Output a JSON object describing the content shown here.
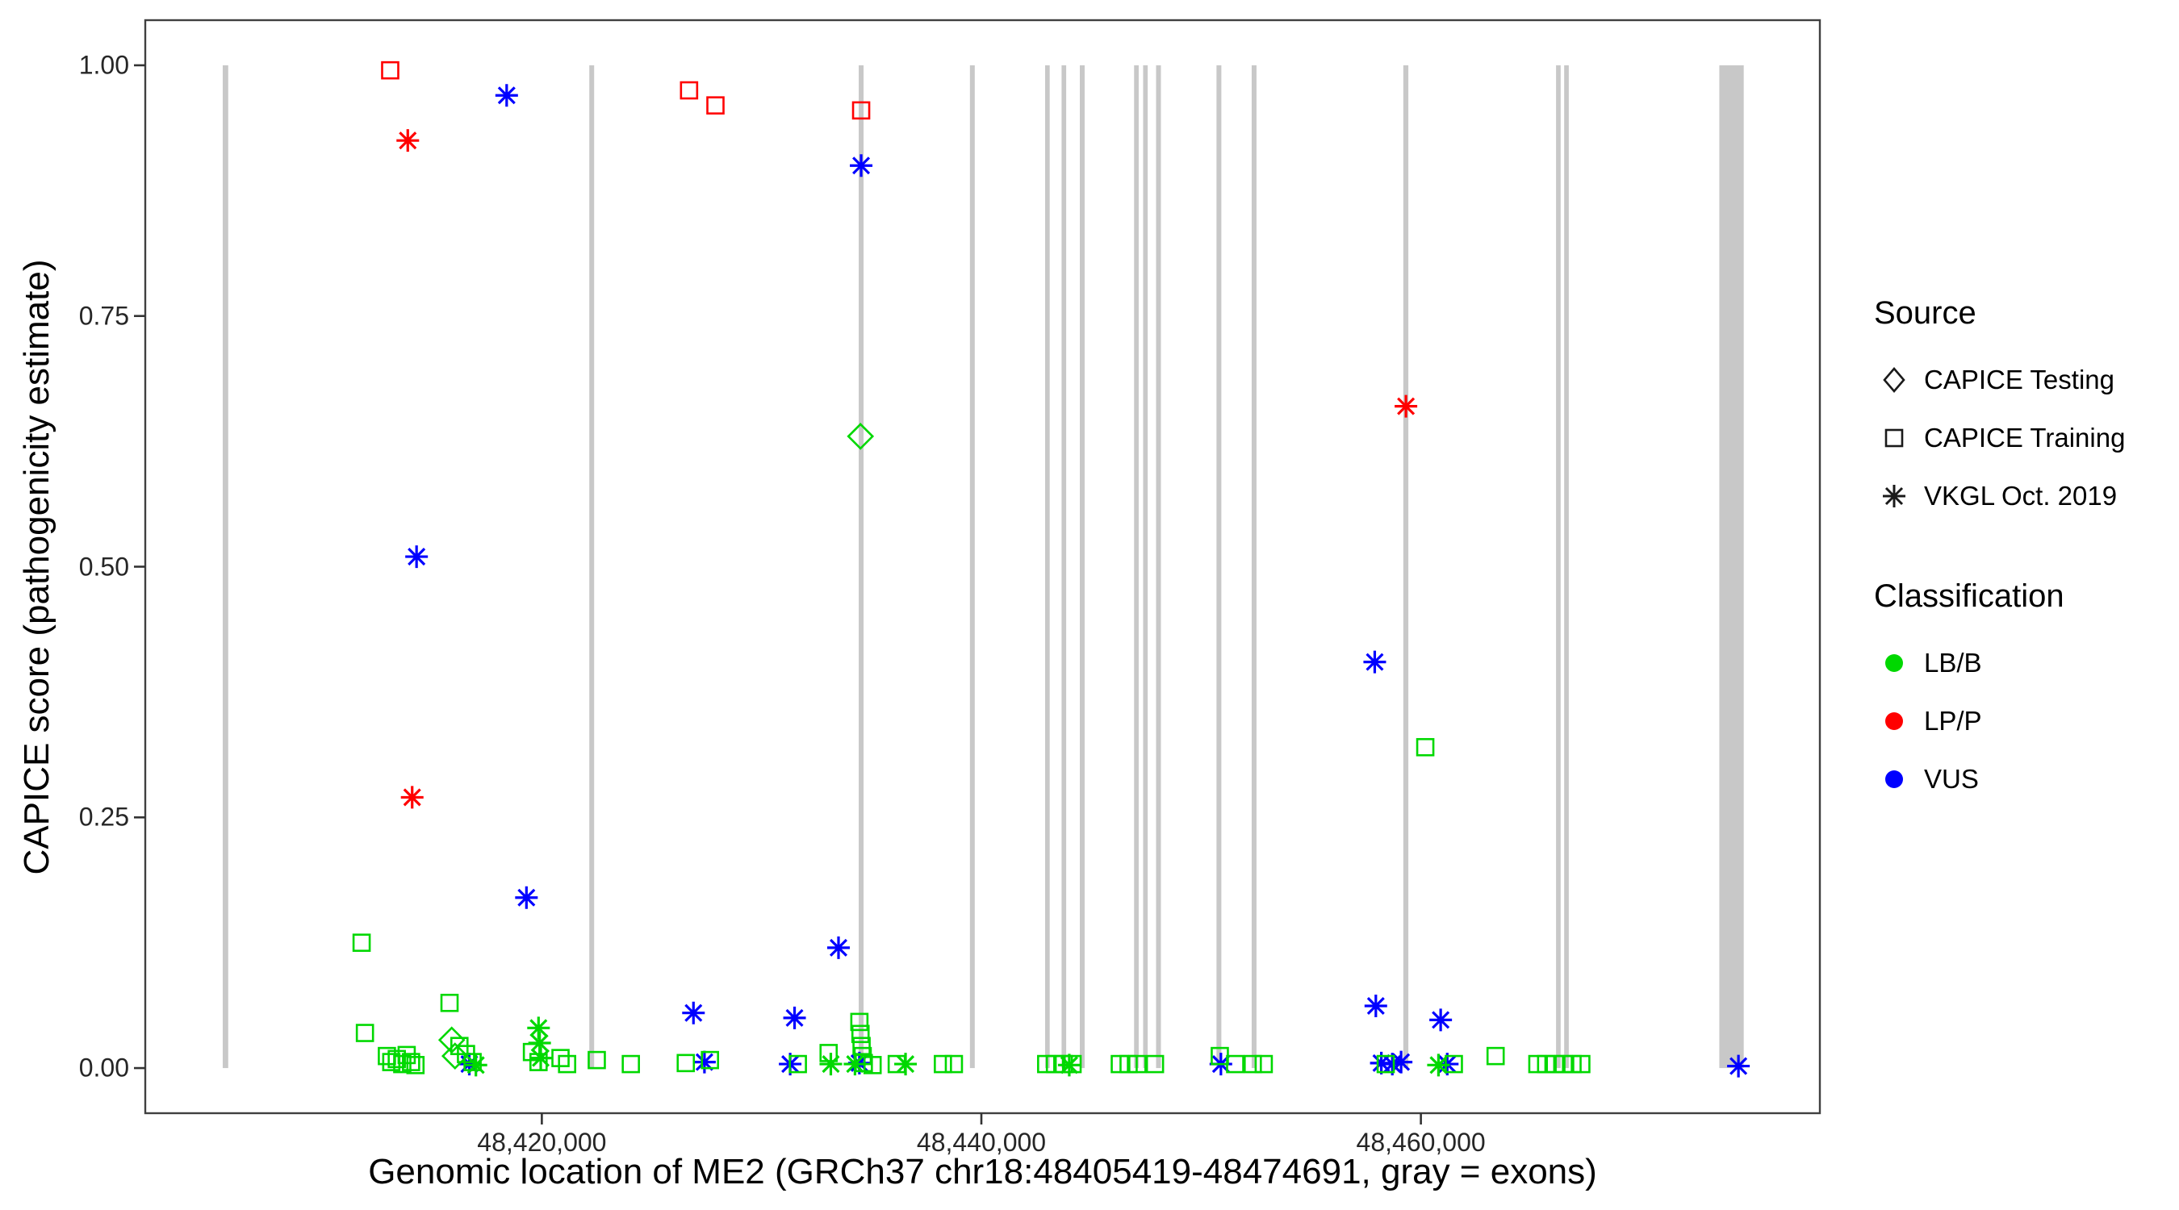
{
  "figure": {
    "x_axis_title": "Genomic location of ME2 (GRCh37 chr18:48405419-48474691, gray = exons)",
    "y_axis_title": "CAPICE score (pathogenicity estimate)"
  },
  "legend": {
    "source": {
      "title": "Source",
      "items": [
        {
          "label": "CAPICE Testing",
          "shape": "diamond"
        },
        {
          "label": "CAPICE Training",
          "shape": "square"
        },
        {
          "label": "VKGL Oct. 2019",
          "shape": "asterisk"
        }
      ]
    },
    "classification": {
      "title": "Classification",
      "items": [
        {
          "label": "LB/B",
          "color": "#00D800"
        },
        {
          "label": "LP/P",
          "color": "#FF0000"
        },
        {
          "label": "VUS",
          "color": "#0000FF"
        }
      ]
    }
  },
  "chart_data": {
    "type": "scatter",
    "title": "",
    "xlabel": "Genomic location of ME2 (GRCh37 chr18:48405419-48474691, gray = exons)",
    "ylabel": "CAPICE score (pathogenicity estimate)",
    "xlim": [
      48401955,
      48478155
    ],
    "ylim": [
      -0.045,
      1.045
    ],
    "x_ticks": [
      {
        "value": 48420000,
        "label": "48,420,000"
      },
      {
        "value": 48440000,
        "label": "48,440,000"
      },
      {
        "value": 48460000,
        "label": "48,460,000"
      }
    ],
    "y_ticks": [
      {
        "value": 1.0,
        "label": "1.00"
      },
      {
        "value": 0.75,
        "label": "0.75"
      },
      {
        "value": 0.5,
        "label": "0.50"
      },
      {
        "value": 0.25,
        "label": "0.25"
      },
      {
        "value": 0.0,
        "label": "0.00"
      }
    ],
    "exon_color": "#C8C8C8",
    "exons": [
      [
        48405480,
        48405730
      ],
      [
        48422160,
        48422380
      ],
      [
        48434420,
        48434640
      ],
      [
        48439480,
        48439700
      ],
      [
        48442900,
        48443110
      ],
      [
        48443650,
        48443860
      ],
      [
        48444480,
        48444700
      ],
      [
        48446950,
        48447160
      ],
      [
        48447360,
        48447570
      ],
      [
        48447950,
        48448170
      ],
      [
        48450700,
        48450920
      ],
      [
        48452300,
        48452520
      ],
      [
        48459200,
        48459430
      ],
      [
        48466150,
        48466360
      ],
      [
        48466520,
        48466730
      ],
      [
        48473580,
        48474691
      ]
    ],
    "source_codes": {
      "te": "CAPICE Testing",
      "tr": "CAPICE Training",
      "vk": "VKGL Oct. 2019"
    },
    "shapes_by_source": {
      "te": "diamond",
      "tr": "square",
      "vk": "asterisk"
    },
    "colors_by_classification": {
      "LB/B": "#00D800",
      "LP/P": "#FF0000",
      "VUS": "#0000FF"
    },
    "point_format": [
      "genomic_position",
      "capice_score",
      "source_code",
      "classification"
    ],
    "points": [
      [
        48413100,
        0.995,
        "tr",
        "LP/P"
      ],
      [
        48426700,
        0.975,
        "tr",
        "LP/P"
      ],
      [
        48427900,
        0.96,
        "tr",
        "LP/P"
      ],
      [
        48434530,
        0.955,
        "tr",
        "LP/P"
      ],
      [
        48413900,
        0.925,
        "vk",
        "LP/P"
      ],
      [
        48414100,
        0.27,
        "vk",
        "LP/P"
      ],
      [
        48459320,
        0.66,
        "vk",
        "LP/P"
      ],
      [
        48418400,
        0.97,
        "vk",
        "VUS"
      ],
      [
        48434530,
        0.9,
        "vk",
        "VUS"
      ],
      [
        48414300,
        0.51,
        "vk",
        "VUS"
      ],
      [
        48419300,
        0.17,
        "vk",
        "VUS"
      ],
      [
        48433500,
        0.12,
        "vk",
        "VUS"
      ],
      [
        48426900,
        0.055,
        "vk",
        "VUS"
      ],
      [
        48431500,
        0.05,
        "vk",
        "VUS"
      ],
      [
        48457900,
        0.405,
        "vk",
        "VUS"
      ],
      [
        48457950,
        0.062,
        "vk",
        "VUS"
      ],
      [
        48460900,
        0.048,
        "vk",
        "VUS"
      ],
      [
        48416700,
        0.004,
        "vk",
        "VUS"
      ],
      [
        48427400,
        0.006,
        "vk",
        "VUS"
      ],
      [
        48431300,
        0.004,
        "vk",
        "VUS"
      ],
      [
        48434450,
        0.005,
        "vk",
        "VUS"
      ],
      [
        48450900,
        0.004,
        "vk",
        "VUS"
      ],
      [
        48458200,
        0.005,
        "vk",
        "VUS"
      ],
      [
        48458700,
        0.004,
        "vk",
        "VUS"
      ],
      [
        48459100,
        0.006,
        "vk",
        "VUS"
      ],
      [
        48461200,
        0.004,
        "vk",
        "VUS"
      ],
      [
        48474450,
        0.002,
        "vk",
        "VUS"
      ],
      [
        48434500,
        0.63,
        "te",
        "LB/B"
      ],
      [
        48415900,
        0.028,
        "te",
        "LB/B"
      ],
      [
        48416050,
        0.012,
        "te",
        "LB/B"
      ],
      [
        48411800,
        0.125,
        "tr",
        "LB/B"
      ],
      [
        48411950,
        0.035,
        "tr",
        "LB/B"
      ],
      [
        48415800,
        0.065,
        "tr",
        "LB/B"
      ],
      [
        48412950,
        0.012,
        "tr",
        "LB/B"
      ],
      [
        48413150,
        0.006,
        "tr",
        "LB/B"
      ],
      [
        48413400,
        0.009,
        "tr",
        "LB/B"
      ],
      [
        48413650,
        0.004,
        "tr",
        "LB/B"
      ],
      [
        48413850,
        0.013,
        "tr",
        "LB/B"
      ],
      [
        48414050,
        0.006,
        "tr",
        "LB/B"
      ],
      [
        48414250,
        0.003,
        "tr",
        "LB/B"
      ],
      [
        48416250,
        0.022,
        "tr",
        "LB/B"
      ],
      [
        48416550,
        0.014,
        "tr",
        "LB/B"
      ],
      [
        48416850,
        0.006,
        "tr",
        "LB/B"
      ],
      [
        48419550,
        0.016,
        "tr",
        "LB/B"
      ],
      [
        48419850,
        0.006,
        "tr",
        "LB/B"
      ],
      [
        48420850,
        0.01,
        "tr",
        "LB/B"
      ],
      [
        48421150,
        0.004,
        "tr",
        "LB/B"
      ],
      [
        48422500,
        0.008,
        "tr",
        "LB/B"
      ],
      [
        48424050,
        0.004,
        "tr",
        "LB/B"
      ],
      [
        48426550,
        0.005,
        "tr",
        "LB/B"
      ],
      [
        48427650,
        0.008,
        "tr",
        "LB/B"
      ],
      [
        48431650,
        0.004,
        "tr",
        "LB/B"
      ],
      [
        48433050,
        0.015,
        "tr",
        "LB/B"
      ],
      [
        48434450,
        0.046,
        "tr",
        "LB/B"
      ],
      [
        48434500,
        0.034,
        "tr",
        "LB/B"
      ],
      [
        48434550,
        0.022,
        "tr",
        "LB/B"
      ],
      [
        48434600,
        0.012,
        "tr",
        "LB/B"
      ],
      [
        48434650,
        0.005,
        "tr",
        "LB/B"
      ],
      [
        48435050,
        0.003,
        "tr",
        "LB/B"
      ],
      [
        48436150,
        0.004,
        "tr",
        "LB/B"
      ],
      [
        48438250,
        0.004,
        "tr",
        "LB/B"
      ],
      [
        48438750,
        0.004,
        "tr",
        "LB/B"
      ],
      [
        48442950,
        0.004,
        "tr",
        "LB/B"
      ],
      [
        48443350,
        0.004,
        "tr",
        "LB/B"
      ],
      [
        48443750,
        0.004,
        "tr",
        "LB/B"
      ],
      [
        48444150,
        0.004,
        "tr",
        "LB/B"
      ],
      [
        48446300,
        0.004,
        "tr",
        "LB/B"
      ],
      [
        48446700,
        0.004,
        "tr",
        "LB/B"
      ],
      [
        48447100,
        0.004,
        "tr",
        "LB/B"
      ],
      [
        48447900,
        0.004,
        "tr",
        "LB/B"
      ],
      [
        48450850,
        0.012,
        "tr",
        "LB/B"
      ],
      [
        48451550,
        0.004,
        "tr",
        "LB/B"
      ],
      [
        48452350,
        0.004,
        "tr",
        "LB/B"
      ],
      [
        48452850,
        0.004,
        "tr",
        "LB/B"
      ],
      [
        48458400,
        0.004,
        "tr",
        "LB/B"
      ],
      [
        48460200,
        0.32,
        "tr",
        "LB/B"
      ],
      [
        48461500,
        0.004,
        "tr",
        "LB/B"
      ],
      [
        48463400,
        0.012,
        "tr",
        "LB/B"
      ],
      [
        48465300,
        0.004,
        "tr",
        "LB/B"
      ],
      [
        48465700,
        0.004,
        "tr",
        "LB/B"
      ],
      [
        48466100,
        0.004,
        "tr",
        "LB/B"
      ],
      [
        48466500,
        0.004,
        "tr",
        "LB/B"
      ],
      [
        48466900,
        0.004,
        "tr",
        "LB/B"
      ],
      [
        48467300,
        0.004,
        "tr",
        "LB/B"
      ],
      [
        48419850,
        0.04,
        "vk",
        "LB/B"
      ],
      [
        48419900,
        0.025,
        "vk",
        "LB/B"
      ],
      [
        48419950,
        0.01,
        "vk",
        "LB/B"
      ],
      [
        48417000,
        0.003,
        "vk",
        "LB/B"
      ],
      [
        48433150,
        0.004,
        "vk",
        "LB/B"
      ],
      [
        48434250,
        0.004,
        "vk",
        "LB/B"
      ],
      [
        48436550,
        0.004,
        "vk",
        "LB/B"
      ],
      [
        48444000,
        0.003,
        "vk",
        "LB/B"
      ],
      [
        48460800,
        0.003,
        "vk",
        "LB/B"
      ]
    ]
  }
}
